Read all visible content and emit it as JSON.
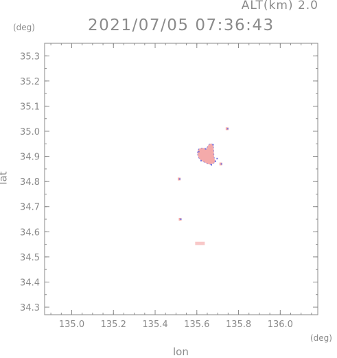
{
  "header": {
    "altitude_label": "ALT(km) 2.0",
    "timestamp": "2021/07/05 07:36:43"
  },
  "chart_data": {
    "type": "heatmap",
    "title": "2021/07/05 07:36:43",
    "xlabel": "lon",
    "ylabel": "lat",
    "x_unit": "(deg)",
    "y_unit": "(deg)",
    "xlim": [
      134.87,
      136.18
    ],
    "ylim": [
      34.27,
      35.35
    ],
    "x_ticks": [
      "135.0",
      "135.2",
      "135.4",
      "135.6",
      "135.8",
      "136.0"
    ],
    "y_ticks": [
      "34.3",
      "34.4",
      "34.5",
      "34.6",
      "34.7",
      "34.8",
      "34.9",
      "35.0",
      "35.1",
      "35.2",
      "35.3"
    ],
    "grid": false,
    "colors": {
      "axis": "#8a8a8a",
      "echo_fill": "#f4aaaa",
      "echo_edge": "#7070e0",
      "echo_light": "#f8c8c8"
    },
    "echo_regions": [
      {
        "shape": "main-cell",
        "lon_center": 135.65,
        "lat_center": 34.905,
        "lon_radius": 0.055,
        "lat_radius": 0.055
      },
      {
        "shape": "small-cell",
        "lon": 135.745,
        "lat": 35.01
      },
      {
        "shape": "small-cell",
        "lon": 135.715,
        "lat": 34.87
      },
      {
        "shape": "small-cell",
        "lon": 135.515,
        "lat": 34.81
      },
      {
        "shape": "small-cell",
        "lon": 135.52,
        "lat": 34.65
      },
      {
        "shape": "faint-cell",
        "lon": 135.615,
        "lat": 34.555
      }
    ]
  }
}
